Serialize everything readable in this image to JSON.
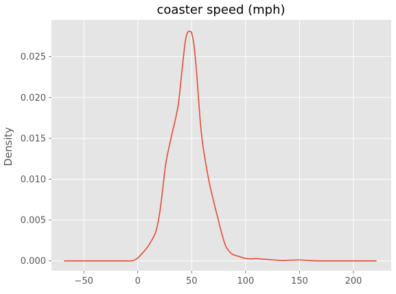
{
  "chart_data": {
    "type": "line",
    "title": "coaster speed (mph)",
    "xlabel": "",
    "ylabel": "Density",
    "xlim": [
      -80,
      235
    ],
    "ylim": [
      -0.0012,
      0.0295
    ],
    "xticks": [
      -50,
      0,
      50,
      100,
      150,
      200
    ],
    "yticks": [
      0.0,
      0.005,
      0.01,
      0.015,
      0.02,
      0.025
    ],
    "xtick_labels": [
      "−50",
      "0",
      "50",
      "100",
      "150",
      "200"
    ],
    "ytick_labels": [
      "0.000",
      "0.005",
      "0.010",
      "0.015",
      "0.020",
      "0.025"
    ],
    "grid": true,
    "background": "#e5e5e5",
    "grid_color": "#ffffff",
    "line_color": "#e24a33",
    "text_color": "#555555",
    "series": [
      {
        "x": [
          -68,
          -50,
          -30,
          -15,
          -8,
          -4,
          0,
          4,
          8,
          12,
          16,
          18,
          20,
          22,
          24,
          26,
          28,
          30,
          32,
          34,
          36,
          38,
          40,
          42,
          44,
          46,
          48,
          50,
          52,
          54,
          56,
          58,
          60,
          62,
          64,
          66,
          68,
          70,
          72,
          74,
          76,
          78,
          80,
          82,
          84,
          86,
          88,
          90,
          95,
          100,
          105,
          110,
          115,
          120,
          125,
          130,
          135,
          140,
          145,
          150,
          155,
          160,
          170,
          180,
          200,
          221
        ],
        "y": [
          0.0,
          0.0,
          0.0,
          0.0,
          0.0,
          5e-05,
          0.00035,
          0.0009,
          0.0015,
          0.0023,
          0.0033,
          0.0042,
          0.0056,
          0.0075,
          0.0098,
          0.0119,
          0.0133,
          0.0145,
          0.0157,
          0.0168,
          0.018,
          0.0195,
          0.022,
          0.0245,
          0.0268,
          0.0279,
          0.0281,
          0.0279,
          0.0265,
          0.024,
          0.0205,
          0.017,
          0.0145,
          0.0128,
          0.0112,
          0.0098,
          0.0086,
          0.0075,
          0.0064,
          0.0054,
          0.0043,
          0.0033,
          0.0024,
          0.0017,
          0.0013,
          0.001,
          0.0008,
          0.0007,
          0.0005,
          0.0003,
          0.00025,
          0.00028,
          0.00022,
          0.00018,
          0.00012,
          8e-05,
          4e-05,
          8e-05,
          0.0001,
          0.00012,
          8e-05,
          3e-05,
          0.0,
          0.0,
          0.0,
          0.0
        ]
      }
    ]
  }
}
